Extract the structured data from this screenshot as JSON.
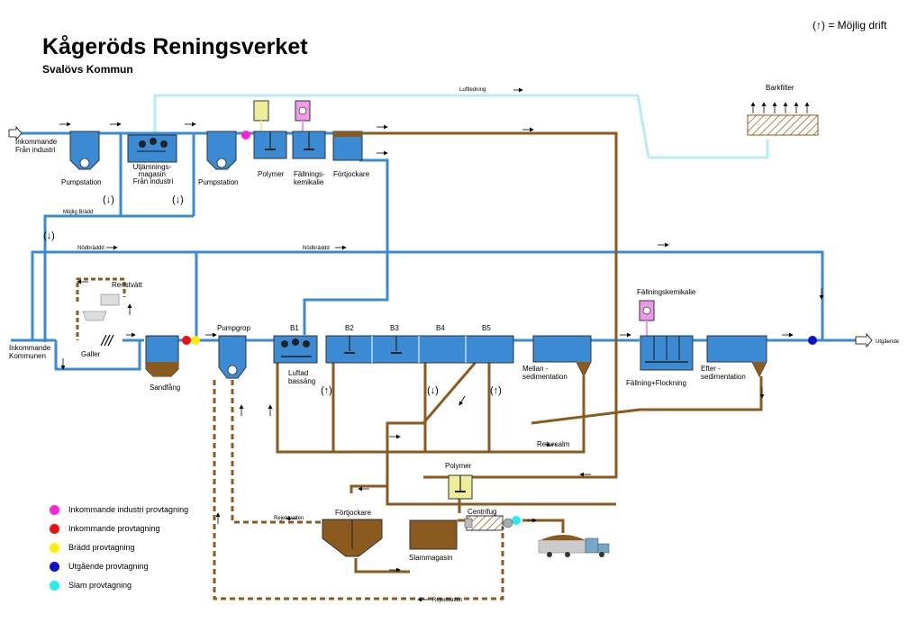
{
  "header": {
    "title": "Kågeröds Reningsverket",
    "subtitle": "Svalövs Kommun",
    "possible_operation_note": "(↑) = Möjlig drift"
  },
  "colors": {
    "water_pipe": "#3b8bd4",
    "sludge_pipe": "#8b5a1f",
    "air_pipe": "#b8ecf5",
    "tank_fill": "#3b8bd4",
    "sludge_fill": "#8b5a1f"
  },
  "labels": {
    "inflow_industry": "Inkommande\nFrån industri",
    "pumpstation_1": "Pumpstation",
    "equalization": "Utjämnings-\nmagasin\nFrån industri",
    "pumpstation_2": "Pumpstation",
    "polymer_top": "Polymer",
    "precip_chem_top": "Fällnings-\nkemikalie",
    "thickener_top": "Förtjockare",
    "air_line": "Luftledning",
    "bark_filter": "Barkfilter",
    "possible_overflow": "Möjlig Brädd",
    "emergency_overflow_1": "Nödbräddd",
    "emergency_overflow_2": "Nödbräddd",
    "rinse": "Renstvätt",
    "inflow_municipal": "Inkommande\nKommunen",
    "screen": "Galler",
    "grit_chamber": "Sandfång",
    "pump_pit": "Pumpgrop",
    "b1": "B1",
    "b2": "B2",
    "b3": "B3",
    "b4": "B4",
    "b5": "B5",
    "aerated_basin": "Luftad\nbassäng",
    "intermediate_sedimentation": "Mellan -\nsedimentation",
    "precip_chem_right": "Fällningskemikalie",
    "precip_flocc": "Fällning+Flockning",
    "post_sedimentation": "Efter -\nsedimentation",
    "outflow": "Utgående",
    "return_sludge": "Retursalm",
    "polymer_bottom": "Polymer",
    "thickener_bottom": "Förtjockare",
    "centrifuge": "Centrifug",
    "sludge_storage": "Slammagasin",
    "reject_water_1": "Rejektvatten",
    "reject_water_2": "Rejektvatten",
    "possible_symbol_up": "(↑)",
    "possible_symbol_down": "(↓)"
  },
  "legend": [
    {
      "label": "Inkommande industri provtagning",
      "color": "#ff22dd"
    },
    {
      "label": "Inkommande provtagning",
      "color": "#ee1111"
    },
    {
      "label": "Brädd provtagning",
      "color": "#ffee00"
    },
    {
      "label": "Utgående provtagning",
      "color": "#1111cc"
    },
    {
      "label": "Slam provtagning",
      "color": "#22eeee"
    }
  ]
}
